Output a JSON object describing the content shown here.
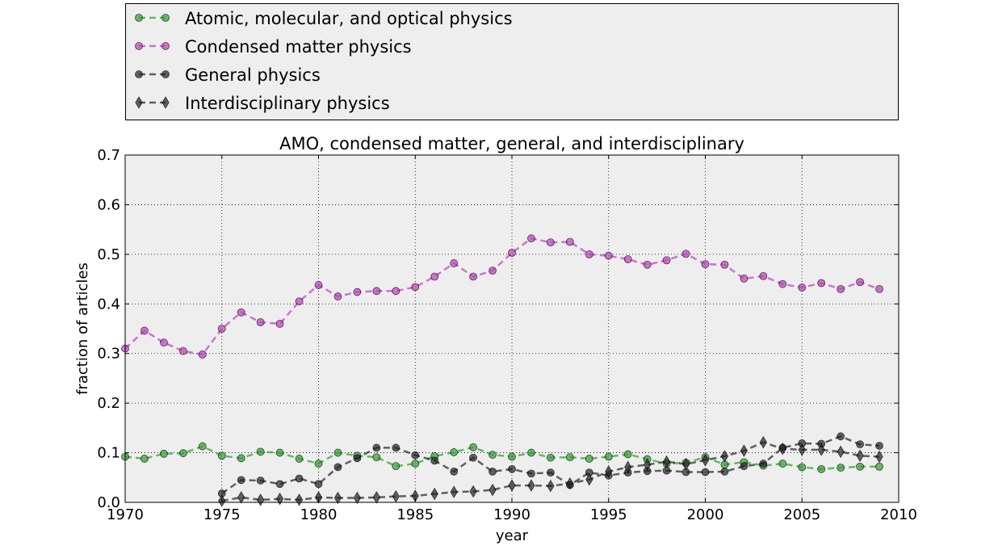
{
  "chart_data": {
    "type": "line",
    "title": "AMO, condensed matter, general, and interdisciplinary",
    "xlabel": "year",
    "ylabel": "fraction of articles",
    "xlim": [
      1970,
      2010
    ],
    "ylim": [
      0,
      0.7
    ],
    "xticks": [
      1970,
      1975,
      1980,
      1985,
      1990,
      1995,
      2000,
      2005,
      2010
    ],
    "yticks": [
      0.0,
      0.1,
      0.2,
      0.3,
      0.4,
      0.5,
      0.6,
      0.7
    ],
    "xtick_labels": [
      "1970",
      "1975",
      "1980",
      "1985",
      "1990",
      "1995",
      "2000",
      "2005",
      "2010"
    ],
    "ytick_labels": [
      "0.0",
      "0.1",
      "0.2",
      "0.3",
      "0.4",
      "0.5",
      "0.6",
      "0.7"
    ],
    "grid": true,
    "legend_position": "above",
    "series": [
      {
        "name": "Atomic, molecular, and optical physics",
        "color": "#2ca02c",
        "marker": "circle",
        "x": [
          1970,
          1971,
          1972,
          1973,
          1974,
          1975,
          1976,
          1977,
          1978,
          1979,
          1980,
          1981,
          1982,
          1983,
          1984,
          1985,
          1986,
          1987,
          1988,
          1989,
          1990,
          1991,
          1992,
          1993,
          1994,
          1995,
          1996,
          1997,
          1998,
          1999,
          2000,
          2001,
          2002,
          2003,
          2004,
          2005,
          2006,
          2007,
          2008,
          2009
        ],
        "y": [
          0.092,
          0.088,
          0.098,
          0.099,
          0.113,
          0.094,
          0.089,
          0.102,
          0.1,
          0.088,
          0.078,
          0.1,
          0.094,
          0.091,
          0.073,
          0.078,
          0.093,
          0.101,
          0.111,
          0.096,
          0.092,
          0.1,
          0.09,
          0.091,
          0.088,
          0.092,
          0.097,
          0.087,
          0.078,
          0.08,
          0.091,
          0.076,
          0.081,
          0.074,
          0.078,
          0.071,
          0.067,
          0.07,
          0.072,
          0.072
        ]
      },
      {
        "name": "Condensed matter physics",
        "color": "#bf3fbf",
        "marker": "circle",
        "x": [
          1970,
          1971,
          1972,
          1973,
          1974,
          1975,
          1976,
          1977,
          1978,
          1979,
          1980,
          1981,
          1982,
          1983,
          1984,
          1985,
          1986,
          1987,
          1988,
          1989,
          1990,
          1991,
          1992,
          1993,
          1994,
          1995,
          1996,
          1997,
          1998,
          1999,
          2000,
          2001,
          2002,
          2003,
          2004,
          2005,
          2006,
          2007,
          2008,
          2009
        ],
        "y": [
          0.31,
          0.346,
          0.322,
          0.305,
          0.298,
          0.35,
          0.383,
          0.363,
          0.36,
          0.405,
          0.438,
          0.415,
          0.424,
          0.426,
          0.426,
          0.434,
          0.455,
          0.482,
          0.455,
          0.467,
          0.503,
          0.532,
          0.524,
          0.525,
          0.5,
          0.497,
          0.49,
          0.479,
          0.488,
          0.501,
          0.48,
          0.479,
          0.451,
          0.456,
          0.44,
          0.433,
          0.442,
          0.43,
          0.444,
          0.43
        ]
      },
      {
        "name": "General physics",
        "color": "#222222",
        "marker": "circle",
        "x": [
          1975,
          1976,
          1977,
          1978,
          1979,
          1980,
          1981,
          1982,
          1983,
          1984,
          1985,
          1986,
          1987,
          1988,
          1989,
          1990,
          1991,
          1992,
          1993,
          1994,
          1995,
          1996,
          1997,
          1998,
          1999,
          2000,
          2001,
          2002,
          2003,
          2004,
          2005,
          2006,
          2007,
          2008,
          2009
        ],
        "y": [
          0.018,
          0.045,
          0.044,
          0.037,
          0.048,
          0.037,
          0.071,
          0.089,
          0.11,
          0.11,
          0.095,
          0.084,
          0.062,
          0.09,
          0.062,
          0.067,
          0.058,
          0.06,
          0.035,
          0.06,
          0.054,
          0.06,
          0.063,
          0.064,
          0.061,
          0.061,
          0.062,
          0.073,
          0.078,
          0.11,
          0.119,
          0.118,
          0.133,
          0.117,
          0.114
        ]
      },
      {
        "name": "Interdisciplinary physics",
        "color": "#222222",
        "marker": "diamond",
        "x": [
          1975,
          1976,
          1977,
          1978,
          1979,
          1980,
          1981,
          1982,
          1983,
          1984,
          1985,
          1986,
          1987,
          1988,
          1989,
          1990,
          1991,
          1992,
          1993,
          1994,
          1995,
          1996,
          1997,
          1998,
          1999,
          2000,
          2001,
          2002,
          2003,
          2004,
          2005,
          2006,
          2007,
          2008,
          2009
        ],
        "y": [
          0.003,
          0.01,
          0.005,
          0.007,
          0.005,
          0.01,
          0.009,
          0.009,
          0.01,
          0.012,
          0.013,
          0.017,
          0.021,
          0.022,
          0.025,
          0.034,
          0.034,
          0.033,
          0.038,
          0.046,
          0.062,
          0.071,
          0.076,
          0.082,
          0.077,
          0.085,
          0.093,
          0.104,
          0.121,
          0.108,
          0.106,
          0.106,
          0.102,
          0.094,
          0.092
        ]
      }
    ]
  }
}
